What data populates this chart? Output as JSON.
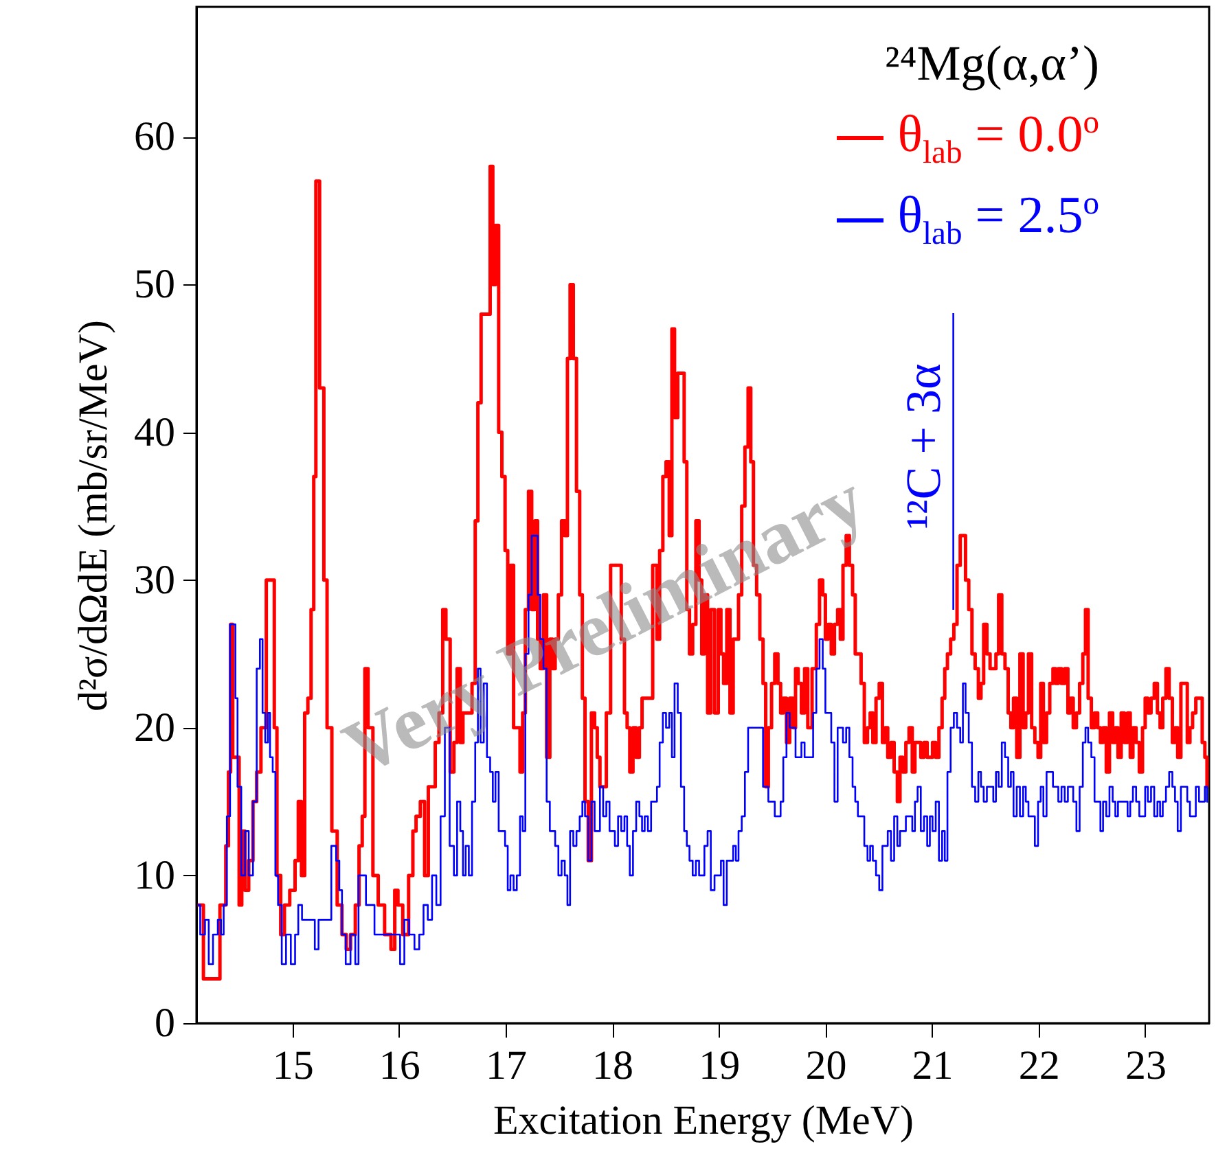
{
  "chart_data": {
    "type": "step",
    "title": "²⁴Mg(α,α’)",
    "xlabel": "Excitation Energy (MeV)",
    "ylabel": "d²σ/dΩdE (mb/sr/MeV)",
    "xlim": [
      14.1,
      23.6
    ],
    "xticks": [
      15,
      16,
      17,
      18,
      19,
      20,
      21,
      22,
      23
    ],
    "ylim": [
      0,
      68.8
    ],
    "yticks": [
      0,
      10,
      20,
      30,
      40,
      50,
      60
    ],
    "legend": "top right",
    "annotations": [
      "Very Preliminary"
    ],
    "ref_lines": [
      {
        "axis": "x",
        "value": 21.2,
        "label": "¹²C + 3α",
        "color": "#0000ff"
      }
    ],
    "series": [
      {
        "name": "θ$_{lab}$ = 0.0$^{o}$",
        "color": "#ff0000",
        "x": [
          14.11,
          14.22,
          14.28,
          14.36,
          14.39,
          14.41,
          14.43,
          14.45,
          14.49,
          14.51,
          14.54,
          14.57,
          14.61,
          14.65,
          14.68,
          14.73,
          14.78,
          14.82,
          14.84,
          14.87,
          14.91,
          14.94,
          15.01,
          15.04,
          15.07,
          15.1,
          15.13,
          15.16,
          15.19,
          15.21,
          15.23,
          15.28,
          15.31,
          15.34,
          15.4,
          15.44,
          15.49,
          15.52,
          15.57,
          15.61,
          15.64,
          15.67,
          15.69,
          15.73,
          15.78,
          15.83,
          15.9,
          15.95,
          15.97,
          16.01,
          16.06,
          16.12,
          16.14,
          16.18,
          16.22,
          16.26,
          16.29,
          16.33,
          16.35,
          16.4,
          16.42,
          16.46,
          16.5,
          16.53,
          16.56,
          16.59,
          16.61,
          16.67,
          16.7,
          16.73,
          16.75,
          16.79,
          16.84,
          16.87,
          16.89,
          16.92,
          16.95,
          16.98,
          17.01,
          17.03,
          17.06,
          17.09,
          17.12,
          17.15,
          17.17,
          17.2,
          17.23,
          17.26,
          17.29,
          17.31,
          17.34,
          17.37,
          17.4,
          17.43,
          17.45,
          17.48,
          17.51,
          17.54,
          17.57,
          17.59,
          17.62,
          17.65,
          17.68,
          17.71,
          17.73,
          17.76,
          17.79,
          17.82,
          17.85,
          17.87,
          17.9,
          17.93,
          17.96,
          18.01,
          18.04,
          18.07,
          18.1,
          18.13,
          18.15,
          18.18,
          18.21,
          18.24,
          18.27,
          18.29,
          18.35,
          18.41,
          18.43,
          18.46,
          18.49,
          18.52,
          18.55,
          18.57,
          18.6,
          18.63,
          18.66,
          18.69,
          18.71,
          18.74,
          18.77,
          18.8,
          18.83,
          18.85,
          18.88,
          18.91,
          18.94,
          18.98,
          19.01,
          19.03,
          19.06,
          19.09,
          19.12,
          19.15,
          19.17,
          19.2,
          19.23,
          19.26,
          19.29,
          19.31,
          19.34,
          19.37,
          19.4,
          19.43,
          19.45,
          19.48,
          19.51,
          19.54,
          19.57,
          19.59,
          19.62,
          19.65,
          19.68,
          19.71,
          19.73,
          19.76,
          19.79,
          19.82,
          19.85,
          19.9,
          19.93,
          19.96,
          19.99,
          20.01,
          20.04,
          20.07,
          20.1,
          20.13,
          20.15,
          20.18,
          20.21,
          20.24,
          20.27,
          20.29,
          20.32,
          20.35,
          20.38,
          20.41,
          20.43,
          20.46,
          20.49,
          20.52,
          20.55,
          20.57,
          20.6,
          20.63,
          20.66,
          20.69,
          20.71,
          20.74,
          20.77,
          20.8,
          20.83,
          20.85,
          20.88,
          20.91,
          20.94,
          20.97,
          20.99,
          21.02,
          21.05,
          21.08,
          21.11,
          21.13,
          21.16,
          21.19,
          21.22,
          21.25,
          21.28,
          21.3,
          21.33,
          21.36,
          21.39,
          21.42,
          21.45,
          21.47,
          21.5,
          21.53,
          21.56,
          21.59,
          21.61,
          21.64,
          21.67,
          21.7,
          21.73,
          21.75,
          21.78,
          21.81,
          21.84,
          21.87,
          21.89,
          21.92,
          21.95,
          21.98,
          22.01,
          22.03,
          22.06,
          22.09,
          22.12,
          22.15,
          22.17,
          22.2,
          22.23,
          22.26,
          22.29,
          22.31,
          22.34,
          22.37,
          22.4,
          22.43,
          22.45,
          22.48,
          22.51,
          22.54,
          22.57,
          22.59,
          22.62,
          22.65,
          22.68,
          22.71,
          22.73,
          22.76,
          22.79,
          22.82,
          22.85,
          22.87,
          22.9,
          22.93,
          22.96,
          22.99,
          23.01,
          23.04,
          23.07,
          23.1,
          23.13,
          23.15,
          23.18,
          23.21,
          23.24,
          23.27,
          23.29,
          23.32,
          23.35,
          23.38,
          23.41,
          23.43,
          23.46,
          23.49,
          23.52,
          23.55,
          23.57,
          23.59
        ],
        "values": [
          8,
          3,
          3,
          8,
          12,
          17,
          27,
          18,
          18,
          8,
          13,
          9,
          11,
          15,
          17,
          20,
          30,
          30,
          20,
          10,
          6,
          8,
          9,
          11,
          15,
          10,
          21,
          22,
          28,
          37,
          57,
          43,
          30,
          20,
          13,
          8,
          6,
          5,
          6,
          8,
          12,
          14,
          24,
          20,
          10,
          8,
          6,
          5,
          9,
          8,
          6,
          10,
          13,
          14,
          15,
          10,
          16,
          16,
          19,
          21,
          28,
          26,
          17,
          19,
          24,
          19,
          21,
          21,
          23,
          34,
          42,
          48,
          48,
          58,
          50,
          54,
          40,
          37,
          32,
          25,
          31,
          20,
          20,
          17,
          21,
          28,
          36,
          28,
          34,
          26,
          24,
          29,
          18,
          26,
          24,
          26,
          29,
          34,
          33,
          45,
          50,
          45,
          36,
          29,
          22,
          15,
          11,
          21,
          20,
          18,
          16,
          16,
          21,
          31,
          31,
          31,
          26,
          21,
          20,
          17,
          20,
          18,
          20,
          22,
          22,
          31,
          26,
          32,
          37,
          38,
          33,
          47,
          41,
          44,
          44,
          38,
          28,
          25,
          27,
          34,
          30,
          25,
          29,
          21,
          28,
          21,
          28,
          25,
          23,
          28,
          21,
          26,
          26,
          29,
          35,
          39,
          43,
          38,
          31,
          29,
          26,
          23,
          16,
          20,
          23,
          25,
          23,
          21,
          22,
          19,
          22,
          20,
          24,
          23,
          21,
          24,
          20,
          24,
          27,
          30,
          29,
          26,
          27,
          25,
          27,
          28,
          26,
          31,
          33,
          31,
          29,
          25,
          25,
          23,
          19,
          20,
          21,
          19,
          22,
          23,
          19,
          20,
          18,
          19,
          17,
          15,
          18,
          17,
          19,
          20,
          17,
          19,
          19,
          18,
          19,
          18,
          18,
          19,
          18,
          20,
          22,
          24,
          25,
          26,
          27,
          31,
          33,
          33,
          30,
          28,
          25,
          24,
          22,
          23,
          27,
          25,
          24,
          24,
          25,
          29,
          25,
          24,
          21,
          20,
          22,
          18,
          25,
          20,
          21,
          25,
          20,
          19,
          18,
          23,
          19,
          21,
          23,
          24,
          23,
          24,
          23,
          24,
          21,
          22,
          20,
          21,
          23,
          25,
          28,
          22,
          20,
          21,
          20,
          19,
          20,
          17,
          21,
          19,
          20,
          18,
          21,
          19,
          21,
          18,
          20,
          19,
          17,
          20,
          22,
          21,
          22,
          23,
          21,
          20,
          22,
          24,
          22,
          19,
          20,
          18,
          23,
          23,
          19,
          20,
          21,
          22,
          22,
          19,
          18,
          16
        ]
      },
      {
        "name": "θ$_{lab}$ = 2.5$^{o}$",
        "color": "#0000ff",
        "x": [
          14.11,
          14.16,
          14.2,
          14.23,
          14.28,
          14.32,
          14.34,
          14.37,
          14.4,
          14.43,
          14.46,
          14.47,
          14.5,
          14.54,
          14.57,
          14.61,
          14.65,
          14.68,
          14.71,
          14.73,
          14.76,
          14.78,
          14.8,
          14.83,
          14.85,
          14.88,
          14.92,
          14.96,
          15.01,
          15.04,
          15.07,
          15.11,
          15.15,
          15.19,
          15.23,
          15.26,
          15.3,
          15.34,
          15.39,
          15.43,
          15.45,
          15.48,
          15.52,
          15.57,
          15.61,
          15.63,
          15.67,
          15.71,
          15.75,
          15.79,
          15.85,
          15.9,
          15.95,
          15.99,
          16.03,
          16.07,
          16.12,
          16.17,
          16.21,
          16.25,
          16.29,
          16.33,
          16.37,
          16.41,
          16.45,
          16.5,
          16.53,
          16.56,
          16.59,
          16.61,
          16.64,
          16.67,
          16.7,
          16.73,
          16.75,
          16.78,
          16.81,
          16.84,
          16.87,
          16.89,
          16.92,
          16.95,
          16.98,
          17.01,
          17.03,
          17.06,
          17.09,
          17.12,
          17.15,
          17.17,
          17.2,
          17.23,
          17.26,
          17.29,
          17.31,
          17.34,
          17.37,
          17.4,
          17.43,
          17.45,
          17.48,
          17.51,
          17.54,
          17.57,
          17.59,
          17.62,
          17.65,
          17.68,
          17.71,
          17.73,
          17.76,
          17.79,
          17.82,
          17.85,
          17.87,
          17.9,
          17.93,
          17.96,
          17.99,
          18.01,
          18.04,
          18.07,
          18.1,
          18.13,
          18.15,
          18.18,
          18.21,
          18.24,
          18.27,
          18.29,
          18.32,
          18.35,
          18.38,
          18.41,
          18.43,
          18.46,
          18.49,
          18.52,
          18.55,
          18.57,
          18.6,
          18.63,
          18.66,
          18.69,
          18.71,
          18.74,
          18.77,
          18.8,
          18.83,
          18.85,
          18.88,
          18.91,
          18.94,
          18.98,
          19.01,
          19.03,
          19.06,
          19.09,
          19.12,
          19.15,
          19.17,
          19.2,
          19.23,
          19.26,
          19.29,
          19.31,
          19.34,
          19.37,
          19.4,
          19.43,
          19.45,
          19.48,
          19.51,
          19.54,
          19.57,
          19.59,
          19.62,
          19.65,
          19.68,
          19.71,
          19.73,
          19.76,
          19.79,
          19.82,
          19.85,
          19.87,
          19.9,
          19.93,
          19.96,
          19.99,
          20.01,
          20.04,
          20.07,
          20.1,
          20.13,
          20.15,
          20.18,
          20.21,
          20.24,
          20.27,
          20.29,
          20.32,
          20.35,
          20.38,
          20.41,
          20.43,
          20.46,
          20.49,
          20.52,
          20.55,
          20.57,
          20.6,
          20.63,
          20.66,
          20.69,
          20.71,
          20.74,
          20.77,
          20.8,
          20.83,
          20.85,
          20.88,
          20.91,
          20.94,
          20.97,
          20.99,
          21.02,
          21.05,
          21.08,
          21.11,
          21.13,
          21.16,
          21.19,
          21.22,
          21.25,
          21.28,
          21.3,
          21.33,
          21.36,
          21.39,
          21.42,
          21.45,
          21.47,
          21.5,
          21.53,
          21.56,
          21.59,
          21.61,
          21.64,
          21.67,
          21.7,
          21.73,
          21.75,
          21.78,
          21.81,
          21.84,
          21.87,
          21.89,
          21.92,
          21.95,
          21.98,
          22.01,
          22.03,
          22.06,
          22.09,
          22.12,
          22.15,
          22.17,
          22.2,
          22.23,
          22.26,
          22.29,
          22.31,
          22.34,
          22.37,
          22.4,
          22.43,
          22.45,
          22.48,
          22.51,
          22.54,
          22.57,
          22.59,
          22.62,
          22.65,
          22.68,
          22.71,
          22.73,
          22.76,
          22.79,
          22.82,
          22.85,
          22.87,
          22.9,
          22.93,
          22.96,
          22.99,
          23.01,
          23.04,
          23.07,
          23.1,
          23.13,
          23.15,
          23.18,
          23.21,
          23.24,
          23.27,
          23.29,
          23.32,
          23.35,
          23.38,
          23.41,
          23.43,
          23.46,
          23.49,
          23.52,
          23.55,
          23.57,
          23.59
        ],
        "values": [
          8,
          6,
          7,
          4,
          6,
          7,
          6,
          8,
          14,
          27,
          27,
          22,
          16,
          10,
          13,
          10,
          15,
          24,
          26,
          21,
          19,
          21,
          18,
          17,
          10,
          8,
          4,
          6,
          4,
          6,
          8,
          7,
          7,
          7,
          5,
          7,
          7,
          7,
          12,
          11,
          9,
          6,
          4,
          6,
          4,
          10,
          10,
          8,
          8,
          6,
          6,
          6,
          6,
          6,
          4,
          7,
          6,
          5,
          6,
          8,
          7,
          10,
          8,
          14,
          20,
          12,
          10,
          15,
          13,
          10,
          12,
          10,
          15,
          19,
          24,
          19,
          23,
          18,
          17,
          15,
          17,
          13,
          13,
          12,
          9,
          10,
          9,
          10,
          14,
          13,
          25,
          29,
          33,
          33,
          29,
          26,
          24,
          15,
          13,
          13,
          12,
          10,
          11,
          10,
          8,
          13,
          12,
          13,
          14,
          15,
          14,
          11,
          15,
          13,
          13,
          16,
          14,
          15,
          13,
          13,
          12,
          14,
          13,
          14,
          12,
          10,
          13,
          15,
          14,
          13,
          14,
          13,
          15,
          15,
          16,
          19,
          21,
          20,
          21,
          18,
          23,
          21,
          16,
          13,
          12,
          11,
          10,
          11,
          10,
          10,
          12,
          13,
          9,
          10,
          10,
          11,
          8,
          11,
          11,
          12,
          11,
          13,
          14,
          17,
          20,
          20,
          20,
          20,
          20,
          16,
          16,
          15,
          15,
          14,
          14,
          15,
          18,
          21,
          20,
          20,
          18,
          18,
          19,
          18,
          18,
          18,
          21,
          24,
          26,
          24,
          21,
          21,
          19,
          15,
          20,
          20,
          19,
          20,
          18,
          16,
          15,
          14,
          14,
          12,
          11,
          12,
          11,
          10,
          9,
          12,
          12,
          13,
          11,
          14,
          12,
          13,
          13,
          14,
          14,
          13,
          15,
          16,
          13,
          14,
          12,
          14,
          13,
          15,
          11,
          13,
          11,
          17,
          20,
          21,
          20,
          19,
          23,
          21,
          19,
          16,
          15,
          17,
          16,
          15,
          16,
          16,
          15,
          17,
          16,
          19,
          18,
          16,
          17,
          14,
          16,
          14,
          16,
          15,
          14,
          14,
          12,
          15,
          16,
          14,
          17,
          17,
          16,
          16,
          15,
          16,
          15,
          16,
          16,
          15,
          13,
          16,
          19,
          20,
          19,
          18,
          15,
          15,
          13,
          15,
          14,
          16,
          15,
          14,
          15,
          15,
          15,
          14,
          15,
          16,
          15,
          14,
          14,
          16,
          15,
          16,
          14,
          15,
          14,
          15,
          16,
          17,
          16,
          15,
          13,
          16,
          16,
          15,
          14,
          14,
          16,
          15,
          15,
          16,
          15
        ]
      }
    ]
  }
}
